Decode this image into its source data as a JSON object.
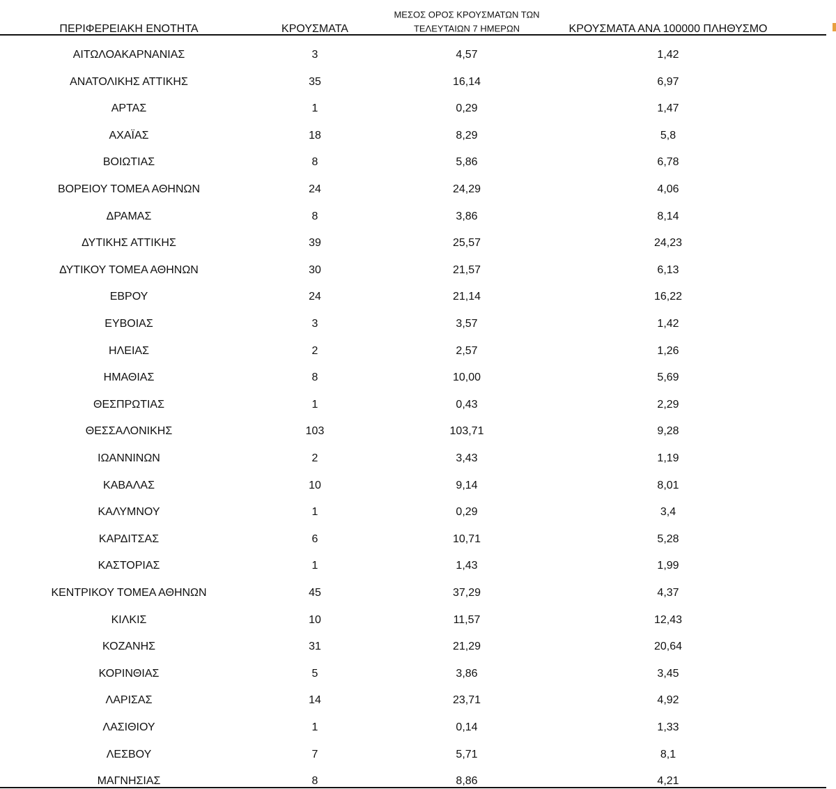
{
  "table": {
    "header": [
      "ΠΕΡΙΦΕΡΕΙΑΚΗ ΕΝΟΤΗΤΑ",
      "ΚΡΟΥΣΜΑΤΑ",
      [
        "ΜΕΣΟΣ ΟΡΟΣ ΚΡΟΥΣΜΑΤΩΝ ΤΩΝ",
        "ΤΕΛΕΥΤΑΙΩΝ 7 ΗΜΕΡΩΝ"
      ],
      "ΚΡΟΥΣΜΑΤΑ ΑΝΑ 100000 ΠΛΗΘΥΣΜΟ"
    ],
    "rows": [
      [
        "ΑΙΤΩΛΟΑΚΑΡΝΑΝΙΑΣ",
        "3",
        "4,57",
        "1,42"
      ],
      [
        "ΑΝΑΤΟΛΙΚΗΣ ΑΤΤΙΚΗΣ",
        "35",
        "16,14",
        "6,97"
      ],
      [
        "ΑΡΤΑΣ",
        "1",
        "0,29",
        "1,47"
      ],
      [
        "ΑΧΑΪΑΣ",
        "18",
        "8,29",
        "5,8"
      ],
      [
        "ΒΟΙΩΤΙΑΣ",
        "8",
        "5,86",
        "6,78"
      ],
      [
        "ΒΟΡΕΙΟΥ ΤΟΜΕΑ ΑΘΗΝΩΝ",
        "24",
        "24,29",
        "4,06"
      ],
      [
        "ΔΡΑΜΑΣ",
        "8",
        "3,86",
        "8,14"
      ],
      [
        "ΔΥΤΙΚΗΣ ΑΤΤΙΚΗΣ",
        "39",
        "25,57",
        "24,23"
      ],
      [
        "ΔΥΤΙΚΟΥ ΤΟΜΕΑ ΑΘΗΝΩΝ",
        "30",
        "21,57",
        "6,13"
      ],
      [
        "ΕΒΡΟΥ",
        "24",
        "21,14",
        "16,22"
      ],
      [
        "ΕΥΒΟΙΑΣ",
        "3",
        "3,57",
        "1,42"
      ],
      [
        "ΗΛΕΙΑΣ",
        "2",
        "2,57",
        "1,26"
      ],
      [
        "ΗΜΑΘΙΑΣ",
        "8",
        "10,00",
        "5,69"
      ],
      [
        "ΘΕΣΠΡΩΤΙΑΣ",
        "1",
        "0,43",
        "2,29"
      ],
      [
        "ΘΕΣΣΑΛΟΝΙΚΗΣ",
        "103",
        "103,71",
        "9,28"
      ],
      [
        "ΙΩΑΝΝΙΝΩΝ",
        "2",
        "3,43",
        "1,19"
      ],
      [
        "ΚΑΒΑΛΑΣ",
        "10",
        "9,14",
        "8,01"
      ],
      [
        "ΚΑΛΥΜΝΟΥ",
        "1",
        "0,29",
        "3,4"
      ],
      [
        "ΚΑΡΔΙΤΣΑΣ",
        "6",
        "10,71",
        "5,28"
      ],
      [
        "ΚΑΣΤΟΡΙΑΣ",
        "1",
        "1,43",
        "1,99"
      ],
      [
        "ΚΕΝΤΡΙΚΟΥ ΤΟΜΕΑ ΑΘΗΝΩΝ",
        "45",
        "37,29",
        "4,37"
      ],
      [
        "ΚΙΛΚΙΣ",
        "10",
        "11,57",
        "12,43"
      ],
      [
        "ΚΟΖΑΝΗΣ",
        "31",
        "21,29",
        "20,64"
      ],
      [
        "ΚΟΡΙΝΘΙΑΣ",
        "5",
        "3,86",
        "3,45"
      ],
      [
        "ΛΑΡΙΣΑΣ",
        "14",
        "23,71",
        "4,92"
      ],
      [
        "ΛΑΣΙΘΙΟΥ",
        "1",
        "0,14",
        "1,33"
      ],
      [
        "ΛΕΣΒΟΥ",
        "7",
        "5,71",
        "8,1"
      ],
      [
        "ΜΑΓΝΗΣΙΑΣ",
        "8",
        "8,86",
        "4,21"
      ]
    ]
  }
}
